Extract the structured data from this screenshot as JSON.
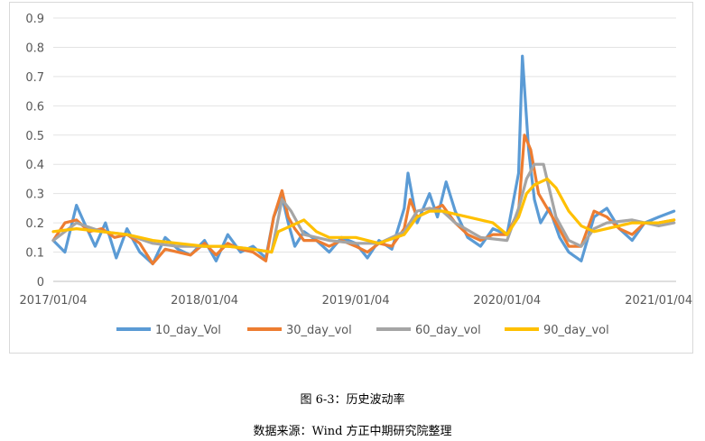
{
  "caption": {
    "figure_title": "图 6-3：历史波动率",
    "source": "数据来源：Wind    方正中期研究院整理"
  },
  "chart_data": {
    "type": "line",
    "title": "",
    "xlabel": "",
    "ylabel": "",
    "ylim": [
      0,
      0.9
    ],
    "y_ticks": [
      "0",
      "0.1",
      "0.2",
      "0.3",
      "0.4",
      "0.5",
      "0.6",
      "0.7",
      "0.8",
      "0.9"
    ],
    "x_ticks": [
      "2017/01/04",
      "2018/01/04",
      "2019/01/04",
      "2020/01/04",
      "2021/01/04"
    ],
    "xlim": [
      "2017/01/04",
      "2021/02/15"
    ],
    "grid": "horizontal",
    "legend_position": "bottom",
    "series": [
      {
        "name": "10_day_Vol",
        "color": "#5b9bd5",
        "x": [
          "2017/01/04",
          "2017/02/01",
          "2017/03/01",
          "2017/03/20",
          "2017/04/15",
          "2017/05/10",
          "2017/06/05",
          "2017/07/01",
          "2017/08/01",
          "2017/09/01",
          "2017/10/01",
          "2017/11/01",
          "2017/12/01",
          "2018/01/04",
          "2018/02/01",
          "2018/03/01",
          "2018/04/01",
          "2018/05/01",
          "2018/06/01",
          "2018/06/20",
          "2018/07/10",
          "2018/07/25",
          "2018/08/10",
          "2018/09/01",
          "2018/10/01",
          "2018/11/01",
          "2018/12/01",
          "2019/01/04",
          "2019/02/01",
          "2019/03/01",
          "2019/04/01",
          "2019/05/01",
          "2019/05/10",
          "2019/06/01",
          "2019/07/01",
          "2019/07/20",
          "2019/08/10",
          "2019/09/01",
          "2019/10/01",
          "2019/11/01",
          "2019/12/01",
          "2020/01/04",
          "2020/02/01",
          "2020/02/10",
          "2020/02/25",
          "2020/03/10",
          "2020/03/25",
          "2020/04/15",
          "2020/05/10",
          "2020/06/01",
          "2020/07/01",
          "2020/08/01",
          "2020/09/01",
          "2020/10/01",
          "2020/11/01",
          "2020/12/01",
          "2021/01/04",
          "2021/02/10"
        ],
        "values": [
          0.14,
          0.1,
          0.26,
          0.2,
          0.12,
          0.2,
          0.08,
          0.18,
          0.1,
          0.06,
          0.15,
          0.11,
          0.09,
          0.14,
          0.07,
          0.16,
          0.1,
          0.12,
          0.08,
          0.22,
          0.29,
          0.2,
          0.12,
          0.17,
          0.14,
          0.1,
          0.15,
          0.13,
          0.08,
          0.14,
          0.11,
          0.25,
          0.37,
          0.2,
          0.3,
          0.22,
          0.34,
          0.24,
          0.15,
          0.12,
          0.18,
          0.16,
          0.37,
          0.77,
          0.45,
          0.28,
          0.2,
          0.25,
          0.15,
          0.1,
          0.07,
          0.22,
          0.25,
          0.18,
          0.14,
          0.2,
          0.22,
          0.24
        ]
      },
      {
        "name": "30_day_vol",
        "color": "#ed7d31",
        "x": [
          "2017/01/04",
          "2017/02/01",
          "2017/03/01",
          "2017/04/01",
          "2017/05/01",
          "2017/06/01",
          "2017/07/01",
          "2017/08/01",
          "2017/09/01",
          "2017/10/01",
          "2017/11/01",
          "2017/12/01",
          "2018/01/04",
          "2018/02/01",
          "2018/03/01",
          "2018/04/01",
          "2018/05/01",
          "2018/06/01",
          "2018/06/20",
          "2018/07/10",
          "2018/07/25",
          "2018/08/10",
          "2018/09/01",
          "2018/10/01",
          "2018/11/01",
          "2018/12/01",
          "2019/01/04",
          "2019/02/01",
          "2019/03/01",
          "2019/04/01",
          "2019/05/01",
          "2019/05/15",
          "2019/06/01",
          "2019/07/01",
          "2019/08/01",
          "2019/09/01",
          "2019/10/01",
          "2019/11/01",
          "2019/12/01",
          "2020/01/04",
          "2020/02/01",
          "2020/02/15",
          "2020/03/01",
          "2020/03/20",
          "2020/04/10",
          "2020/05/01",
          "2020/06/01",
          "2020/07/01",
          "2020/08/01",
          "2020/09/01",
          "2020/10/01",
          "2020/11/01",
          "2020/12/01",
          "2021/01/04",
          "2021/02/10"
        ],
        "values": [
          0.14,
          0.2,
          0.21,
          0.17,
          0.18,
          0.15,
          0.16,
          0.13,
          0.06,
          0.11,
          0.1,
          0.09,
          0.13,
          0.09,
          0.13,
          0.11,
          0.1,
          0.07,
          0.22,
          0.31,
          0.22,
          0.18,
          0.14,
          0.14,
          0.12,
          0.14,
          0.12,
          0.1,
          0.13,
          0.12,
          0.18,
          0.28,
          0.22,
          0.24,
          0.26,
          0.2,
          0.16,
          0.14,
          0.16,
          0.16,
          0.24,
          0.5,
          0.45,
          0.3,
          0.25,
          0.2,
          0.12,
          0.12,
          0.24,
          0.22,
          0.18,
          0.16,
          0.2,
          0.2,
          0.21
        ]
      },
      {
        "name": "60_day_vol",
        "color": "#a5a5a5",
        "x": [
          "2017/01/04",
          "2017/03/01",
          "2017/05/01",
          "2017/07/01",
          "2017/09/01",
          "2017/11/01",
          "2018/01/04",
          "2018/03/01",
          "2018/05/01",
          "2018/06/15",
          "2018/07/10",
          "2018/08/01",
          "2018/09/01",
          "2018/11/01",
          "2019/01/04",
          "2019/03/01",
          "2019/05/01",
          "2019/06/01",
          "2019/07/01",
          "2019/08/01",
          "2019/09/01",
          "2019/11/01",
          "2020/01/04",
          "2020/02/01",
          "2020/02/20",
          "2020/03/10",
          "2020/04/01",
          "2020/05/01",
          "2020/06/01",
          "2020/07/01",
          "2020/08/01",
          "2020/09/01",
          "2020/11/01",
          "2021/01/04",
          "2021/02/10"
        ],
        "values": [
          0.14,
          0.2,
          0.17,
          0.16,
          0.13,
          0.12,
          0.12,
          0.12,
          0.11,
          0.1,
          0.28,
          0.24,
          0.16,
          0.14,
          0.13,
          0.13,
          0.17,
          0.24,
          0.25,
          0.24,
          0.2,
          0.15,
          0.14,
          0.25,
          0.35,
          0.4,
          0.4,
          0.22,
          0.14,
          0.12,
          0.18,
          0.2,
          0.21,
          0.19,
          0.2
        ]
      },
      {
        "name": "90_day_vol",
        "color": "#ffc000",
        "x": [
          "2017/01/04",
          "2017/03/01",
          "2017/05/01",
          "2017/07/01",
          "2017/09/01",
          "2017/11/01",
          "2018/01/04",
          "2018/03/01",
          "2018/05/01",
          "2018/06/15",
          "2018/07/01",
          "2018/08/01",
          "2018/09/01",
          "2018/10/01",
          "2018/11/01",
          "2019/01/04",
          "2019/03/01",
          "2019/05/01",
          "2019/06/01",
          "2019/07/01",
          "2019/08/01",
          "2019/10/01",
          "2019/12/01",
          "2020/01/04",
          "2020/02/01",
          "2020/02/20",
          "2020/03/10",
          "2020/04/10",
          "2020/05/01",
          "2020/06/01",
          "2020/07/01",
          "2020/08/01",
          "2020/09/01",
          "2020/11/01",
          "2021/01/04",
          "2021/02/10"
        ],
        "values": [
          0.17,
          0.18,
          0.17,
          0.16,
          0.14,
          0.13,
          0.12,
          0.12,
          0.11,
          0.1,
          0.17,
          0.19,
          0.21,
          0.17,
          0.15,
          0.15,
          0.13,
          0.16,
          0.22,
          0.24,
          0.24,
          0.22,
          0.2,
          0.16,
          0.22,
          0.3,
          0.33,
          0.35,
          0.32,
          0.24,
          0.19,
          0.17,
          0.18,
          0.2,
          0.2,
          0.21
        ]
      }
    ]
  }
}
